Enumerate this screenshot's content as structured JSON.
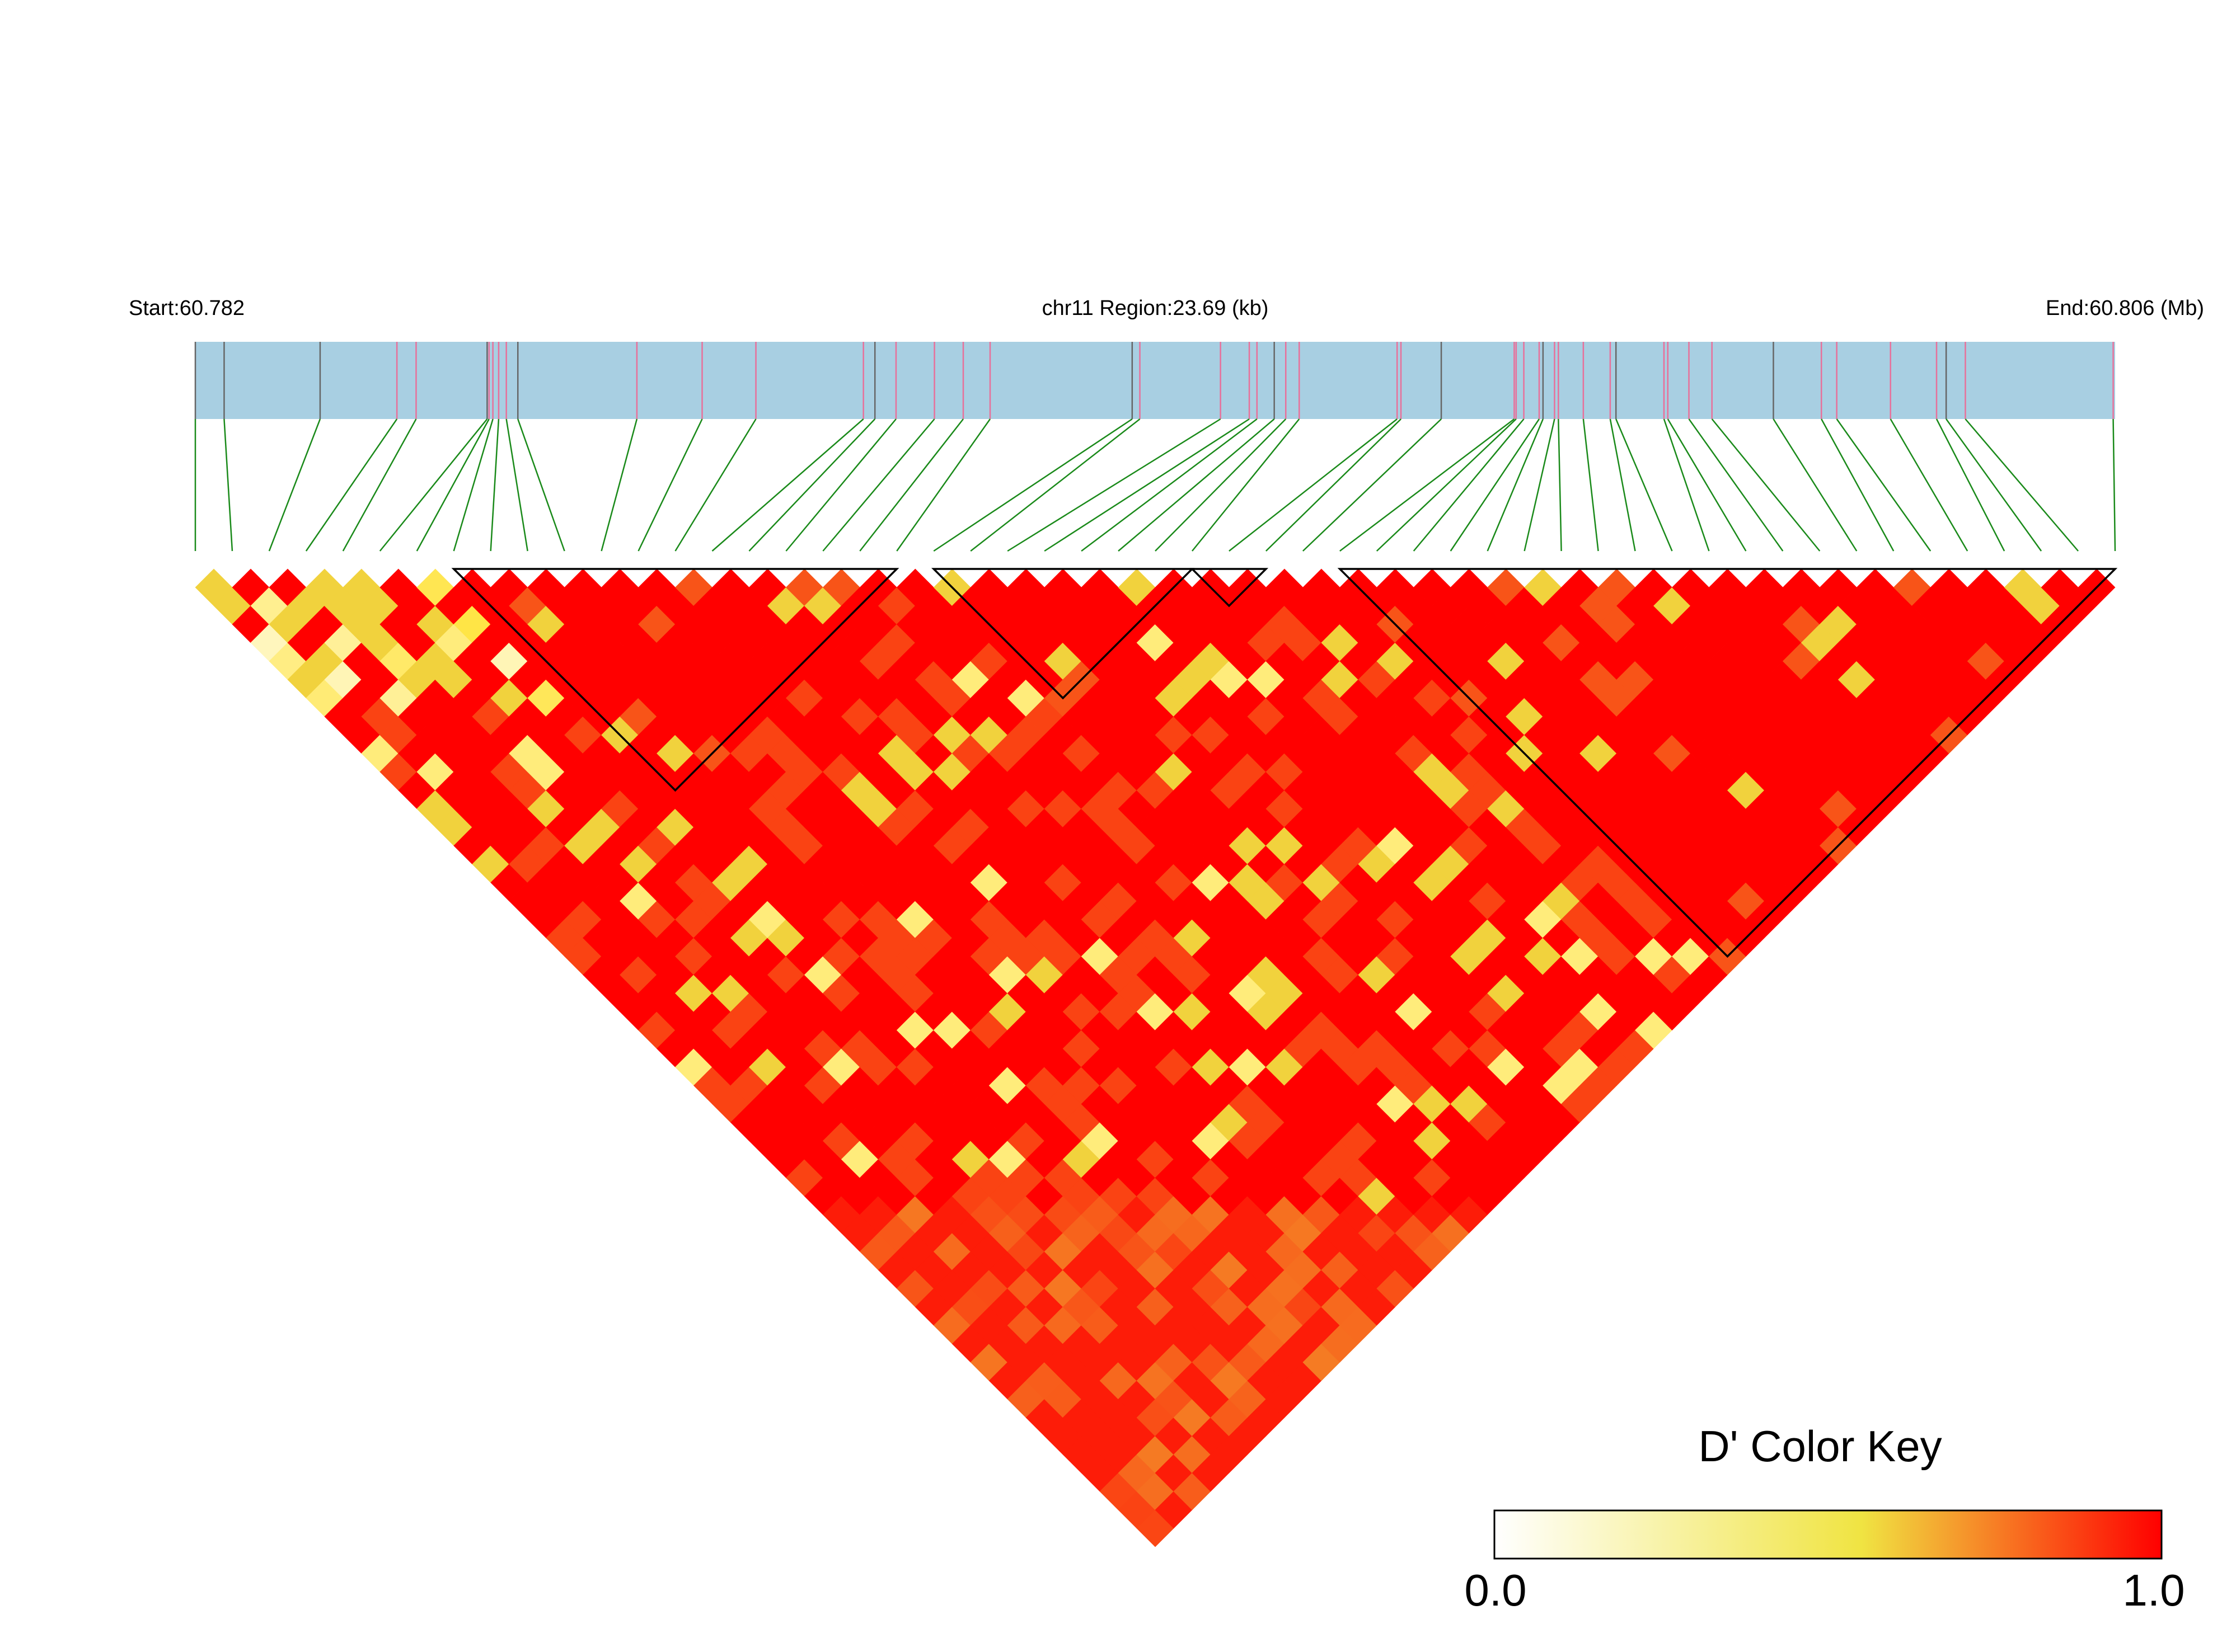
{
  "chart_data": {
    "type": "heatmap",
    "variant": "ld-triangle",
    "chromosome_label": "chr11 Region:23.69 (kb)",
    "start_label": "Start:60.782",
    "end_label": "End:60.806 (Mb)",
    "start_mb": 60.782,
    "end_mb": 60.806,
    "n_snps": 53,
    "snp_positions": [
      0.0,
      0.015,
      0.065,
      0.105,
      0.115,
      0.152,
      0.153,
      0.155,
      0.158,
      0.162,
      0.168,
      0.23,
      0.264,
      0.292,
      0.348,
      0.354,
      0.365,
      0.385,
      0.4,
      0.414,
      0.488,
      0.492,
      0.534,
      0.549,
      0.553,
      0.562,
      0.568,
      0.575,
      0.626,
      0.628,
      0.649,
      0.687,
      0.688,
      0.692,
      0.7,
      0.702,
      0.708,
      0.71,
      0.723,
      0.737,
      0.74,
      0.765,
      0.767,
      0.778,
      0.79,
      0.822,
      0.847,
      0.855,
      0.883,
      0.907,
      0.912,
      0.922,
      0.999
    ],
    "blocks": [
      {
        "first": 7,
        "last": 19
      },
      {
        "first": 20,
        "last": 27
      },
      {
        "first": 27,
        "last": 29
      },
      {
        "first": 31,
        "last": 52
      }
    ],
    "color_key": {
      "title": "D' Color Key",
      "min_label": "0.0",
      "max_label": "1.0",
      "min": 0.0,
      "max": 1.0,
      "colors": [
        "#ffffff",
        "#f0e442",
        "#ff0000"
      ]
    },
    "colors": {
      "track_bar": "#a8cfe2",
      "tick_dark": "#666666",
      "tick_pink": "#e8709a",
      "connector": "#1a8a1a",
      "block_outline": "#000000"
    }
  }
}
